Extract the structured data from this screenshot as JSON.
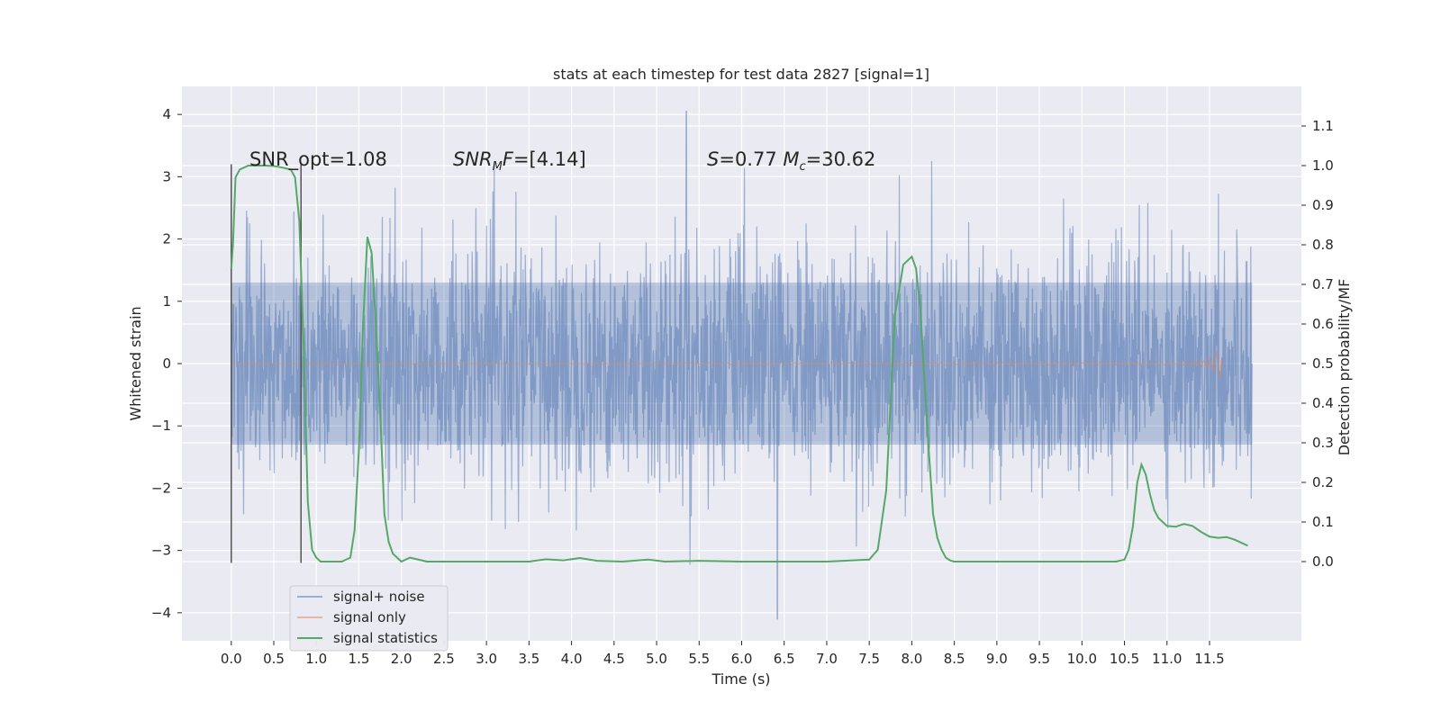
{
  "chart_data": {
    "type": "line",
    "title": "stats at each timestep for test data 2827 [signal=1]",
    "xlabel": "Time (s)",
    "ylabel": "Whitened strain",
    "ylabel_right": "Detection probability/MF",
    "xlim": [
      -0.58,
      12.58
    ],
    "ylim": [
      -4.45,
      4.45
    ],
    "ylim_right": [
      -0.2,
      1.2
    ],
    "x_ticks": [
      0.0,
      0.5,
      1.0,
      1.5,
      2.0,
      2.5,
      3.0,
      3.5,
      4.0,
      4.5,
      5.0,
      5.5,
      6.0,
      6.5,
      7.0,
      7.5,
      8.0,
      8.5,
      9.0,
      9.5,
      10.0,
      10.5,
      11.0,
      11.5
    ],
    "x_tick_labels": [
      "0.0",
      "0.5",
      "1.0",
      "1.5",
      "2.0",
      "2.5",
      "3.0",
      "3.5",
      "4.0",
      "4.5",
      "5.0",
      "5.5",
      "6.0",
      "6.5",
      "7.0",
      "7.5",
      "8.0",
      "8.5",
      "9.0",
      "9.5",
      "10.0",
      "10.5",
      "11.0",
      "11.5"
    ],
    "y_ticks": [
      -4,
      -3,
      -2,
      -1,
      0,
      1,
      2,
      3,
      4
    ],
    "y_tick_labels": [
      "−4",
      "−3",
      "−2",
      "−1",
      "0",
      "1",
      "2",
      "3",
      "4"
    ],
    "y_right_ticks": [
      0.0,
      0.1,
      0.2,
      0.3,
      0.4,
      0.5,
      0.6,
      0.7,
      0.8,
      0.9,
      1.0,
      1.1
    ],
    "y_right_tick_labels": [
      "0.0",
      "0.1",
      "0.2",
      "0.3",
      "0.4",
      "0.5",
      "0.6",
      "0.7",
      "0.8",
      "0.9",
      "1.0",
      "1.1"
    ],
    "grid": true,
    "legend_position": "lower-left",
    "series": [
      {
        "name": "signal+ noise",
        "color": "#4c72b0",
        "x_range": [
          0.0,
          12.0
        ],
        "envelope_core": [
          -1.3,
          1.3
        ],
        "envelope_typical": [
          -2.4,
          2.4
        ],
        "max_peak": {
          "x": 5.35,
          "y": 4.05
        },
        "min_peak": {
          "x": 6.42,
          "y": -4.1
        }
      },
      {
        "name": "signal only",
        "color": "#dd8452",
        "x": [
          0.0,
          11.2,
          11.4,
          11.5,
          11.55,
          11.6,
          11.63,
          11.66
        ],
        "y_amplitude": [
          0.0,
          0.02,
          0.05,
          0.1,
          0.15,
          0.22,
          0.25,
          0.0
        ]
      },
      {
        "name": "signal statistics",
        "color": "#55a868",
        "x": [
          0.0,
          0.02,
          0.05,
          0.1,
          0.2,
          0.3,
          0.4,
          0.5,
          0.6,
          0.7,
          0.75,
          0.8,
          0.85,
          0.9,
          0.95,
          1.0,
          1.05,
          1.1,
          1.2,
          1.3,
          1.4,
          1.45,
          1.5,
          1.55,
          1.6,
          1.65,
          1.7,
          1.75,
          1.8,
          1.85,
          1.9,
          1.95,
          2.0,
          2.1,
          2.3,
          2.5,
          3.0,
          3.5,
          3.7,
          3.9,
          4.1,
          4.3,
          4.6,
          4.9,
          5.1,
          5.5,
          6.0,
          6.5,
          7.0,
          7.5,
          7.6,
          7.7,
          7.75,
          7.8,
          7.9,
          8.0,
          8.05,
          8.1,
          8.15,
          8.2,
          8.25,
          8.3,
          8.35,
          8.4,
          8.45,
          8.5,
          8.6,
          9.0,
          9.5,
          10.0,
          10.4,
          10.5,
          10.55,
          10.6,
          10.65,
          10.7,
          10.75,
          10.8,
          10.85,
          10.9,
          11.0,
          11.1,
          11.2,
          11.3,
          11.4,
          11.5,
          11.6,
          11.7,
          11.8,
          11.9,
          11.95
        ],
        "y": [
          0.74,
          0.8,
          0.97,
          0.99,
          1.0,
          1.0,
          1.0,
          0.999,
          0.995,
          0.99,
          0.97,
          0.86,
          0.55,
          0.15,
          0.03,
          0.01,
          0.0,
          0.0,
          0.0,
          0.0,
          0.01,
          0.08,
          0.28,
          0.6,
          0.82,
          0.78,
          0.6,
          0.38,
          0.12,
          0.05,
          0.02,
          0.01,
          0.0,
          0.01,
          0.0,
          0.0,
          0.0,
          0.0,
          0.006,
          0.003,
          0.009,
          0.002,
          0.0,
          0.005,
          0.0,
          0.002,
          0.0,
          0.0,
          0.0,
          0.005,
          0.03,
          0.18,
          0.4,
          0.62,
          0.75,
          0.77,
          0.74,
          0.64,
          0.45,
          0.28,
          0.12,
          0.06,
          0.03,
          0.01,
          0.003,
          0.0,
          0.0,
          0.0,
          0.0,
          0.0,
          0.0,
          0.005,
          0.03,
          0.09,
          0.2,
          0.245,
          0.22,
          0.17,
          0.13,
          0.11,
          0.09,
          0.088,
          0.095,
          0.09,
          0.075,
          0.063,
          0.06,
          0.062,
          0.055,
          0.045,
          0.04
        ]
      }
    ],
    "vertical_lines": [
      {
        "x": 0.0,
        "ymin": -3.2,
        "ymax": 3.2,
        "color": "#555555"
      },
      {
        "x": 0.82,
        "ymin": -3.2,
        "ymax": 3.2,
        "color": "#555555"
      }
    ],
    "annotations": [
      {
        "text": "SNR_opt=1.08",
        "x": 0.2,
        "y": 3.2
      },
      {
        "text": "SNR_MF=[4.14]",
        "x": 2.6,
        "y": 3.2
      },
      {
        "text": "S=0.77   M_c=30.62",
        "x": 5.6,
        "y": 3.2
      }
    ],
    "legend": [
      "signal+ noise",
      "signal only",
      "signal statistics"
    ]
  }
}
